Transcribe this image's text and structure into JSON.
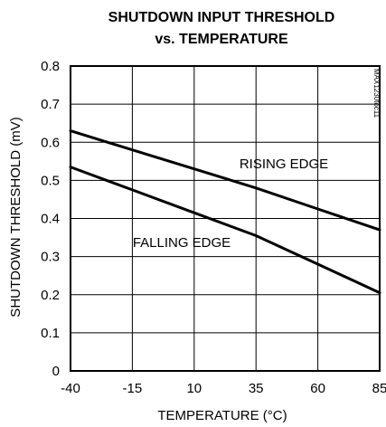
{
  "chart_data": {
    "type": "line",
    "title": "SHUTDOWN INPUT THRESHOLD",
    "subtitle": "vs. TEMPERATURE",
    "xlabel": "TEMPERATURE (°C)",
    "ylabel": "SHUTDOWN THRESHOLD (mV)",
    "xlim": [
      -40,
      85
    ],
    "ylim": [
      0,
      0.8
    ],
    "xticks": [
      "-40",
      "-15",
      "10",
      "35",
      "60",
      "85"
    ],
    "yticks": [
      "0",
      "0.1",
      "0.2",
      "0.3",
      "0.4",
      "0.5",
      "0.6",
      "0.7",
      "0.8"
    ],
    "grid": true,
    "annotations": [
      "RISING EDGE",
      "FALLING EDGE"
    ],
    "figure_code": "MAX1230toc11",
    "series": [
      {
        "name": "RISING EDGE",
        "x": [
          -40,
          -15,
          10,
          35,
          60,
          85
        ],
        "y": [
          0.63,
          0.58,
          0.53,
          0.48,
          0.425,
          0.37
        ]
      },
      {
        "name": "FALLING EDGE",
        "x": [
          -40,
          -15,
          10,
          35,
          60,
          85
        ],
        "y": [
          0.535,
          0.475,
          0.415,
          0.355,
          0.28,
          0.205
        ]
      }
    ]
  }
}
